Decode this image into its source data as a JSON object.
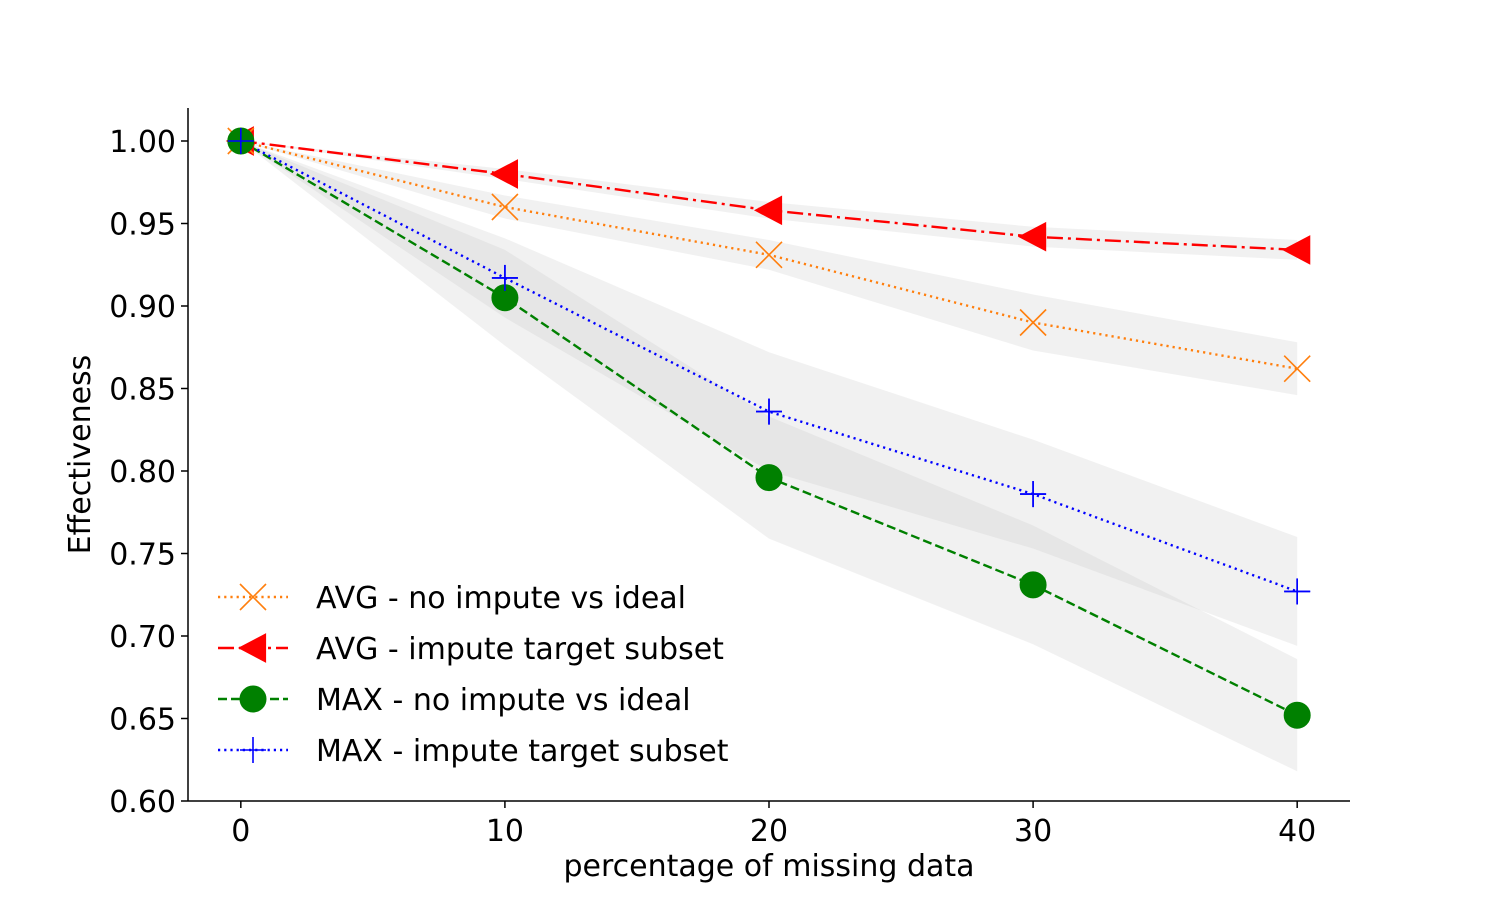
{
  "chart_data": {
    "type": "line",
    "title": "",
    "xlabel": "percentage of missing data",
    "ylabel": "Effectiveness",
    "xlim": [
      -2,
      42
    ],
    "ylim": [
      0.6,
      1.02
    ],
    "xticks": [
      "0",
      "10",
      "20",
      "30",
      "40"
    ],
    "xtick_values": [
      0,
      10,
      20,
      30,
      40
    ],
    "yticks": [
      "0.60",
      "0.65",
      "0.70",
      "0.75",
      "0.80",
      "0.85",
      "0.90",
      "0.95",
      "1.00"
    ],
    "ytick_values": [
      0.6,
      0.65,
      0.7,
      0.75,
      0.8,
      0.85,
      0.9,
      0.95,
      1.0
    ],
    "grid": false,
    "legend_position": "lower-left",
    "x": [
      0,
      10,
      20,
      30,
      40
    ],
    "series": [
      {
        "name": "AVG - no impute vs ideal",
        "values": [
          1.0,
          0.96,
          0.931,
          0.89,
          0.862
        ],
        "lower": [
          1.0,
          0.953,
          0.922,
          0.873,
          0.846
        ],
        "upper": [
          1.0,
          0.967,
          0.94,
          0.907,
          0.878
        ],
        "color": "#ff7f0e",
        "dash": "dotted",
        "marker": "x"
      },
      {
        "name": "AVG - impute target subset",
        "values": [
          1.0,
          0.98,
          0.958,
          0.942,
          0.934
        ],
        "lower": [
          1.0,
          0.977,
          0.953,
          0.936,
          0.928
        ],
        "upper": [
          1.0,
          0.983,
          0.963,
          0.948,
          0.94
        ],
        "color": "#ff0000",
        "dash": "dashdot",
        "marker": "triangle-left"
      },
      {
        "name": "MAX - no impute vs ideal",
        "values": [
          1.0,
          0.905,
          0.796,
          0.731,
          0.652
        ],
        "lower": [
          1.0,
          0.876,
          0.759,
          0.695,
          0.618
        ],
        "upper": [
          1.0,
          0.934,
          0.833,
          0.767,
          0.686
        ],
        "color": "#008000",
        "dash": "dashed",
        "marker": "circle"
      },
      {
        "name": "MAX - impute target subset",
        "values": [
          1.0,
          0.917,
          0.836,
          0.786,
          0.727
        ],
        "lower": [
          1.0,
          0.893,
          0.8,
          0.753,
          0.694
        ],
        "upper": [
          1.0,
          0.941,
          0.872,
          0.819,
          0.76
        ],
        "color": "#0000ff",
        "dash": "dotted",
        "marker": "plus"
      }
    ]
  }
}
